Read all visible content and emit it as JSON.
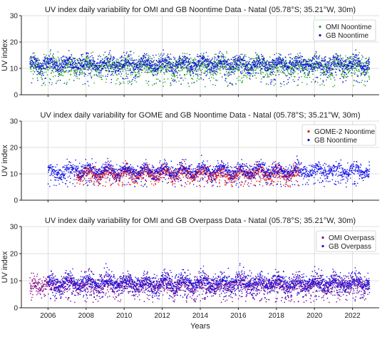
{
  "x_axis": {
    "label": "Years",
    "ticks": [
      "2006",
      "2008",
      "2010",
      "2012",
      "2014",
      "2016",
      "2018",
      "2020",
      "2022"
    ]
  },
  "chart_data": [
    {
      "type": "scatter",
      "title": "UV index daily variability for OMI and GB Noontime Data - Natal (05.78°S; 35.21°W, 30m)",
      "xlabel": "",
      "ylabel": "UV index",
      "xlim": [
        2004.6,
        2023.4
      ],
      "ylim": [
        0,
        30
      ],
      "yticks": [
        "0",
        "10",
        "20",
        "30"
      ],
      "grid": true,
      "legend_position": "top-right",
      "series": [
        {
          "name": "OMI Noontime",
          "color": "#1f9e1f",
          "start": 2005.05,
          "end": 2022.9,
          "seasonal_mean": [
            12.0,
            10.2
          ],
          "scatter": 2.6,
          "low_outliers_to": 3
        },
        {
          "name": "GB Noontime",
          "color": "#1010e8",
          "start": 2005.05,
          "end": 2022.9,
          "seasonal_mean": [
            12.8,
            10.6
          ],
          "scatter": 2.2,
          "low_outliers_to": 4
        }
      ]
    },
    {
      "type": "scatter",
      "title": "UV index daily variability for GOME and GB Noontime Data - Natal (05.78°S; 35.21°W, 30m)",
      "xlabel": "",
      "ylabel": "UV index",
      "xlim": [
        2004.6,
        2023.4
      ],
      "ylim": [
        0,
        30
      ],
      "yticks": [
        "0",
        "10",
        "20",
        "30"
      ],
      "grid": true,
      "legend_position": "top-right",
      "series": [
        {
          "name": "GOME-2 Noontime",
          "color": "#e81010",
          "start": 2007.5,
          "end": 2019.2,
          "seasonal_mean": [
            11.5,
            9.0
          ],
          "scatter": 1.8,
          "low_outliers_to": 5
        },
        {
          "name": "GB Noontime",
          "color": "#1010e8",
          "start": 2006.0,
          "end": 2022.9,
          "seasonal_mean": [
            12.5,
            10.0
          ],
          "scatter": 2.0,
          "low_outliers_to": 5
        }
      ]
    },
    {
      "type": "scatter",
      "title": "UV index daily variability for OMI and GB Overpass Data - Natal (05.78°S; 35.21°W, 30m)",
      "xlabel": "Years",
      "ylabel": "UV index",
      "xlim": [
        2004.6,
        2023.4
      ],
      "ylim": [
        0,
        30
      ],
      "yticks": [
        "0",
        "10",
        "20",
        "30"
      ],
      "grid": true,
      "legend_position": "top-right",
      "series": [
        {
          "name": "OMI Overpass",
          "color": "#800080",
          "start": 2005.05,
          "end": 2022.9,
          "seasonal_mean": [
            9.5,
            7.5
          ],
          "scatter": 2.2,
          "low_outliers_to": 2
        },
        {
          "name": "GB Overpass",
          "color": "#1010e8",
          "start": 2006.0,
          "end": 2022.9,
          "seasonal_mean": [
            10.5,
            8.2
          ],
          "scatter": 2.5,
          "low_outliers_to": 3
        }
      ]
    }
  ]
}
